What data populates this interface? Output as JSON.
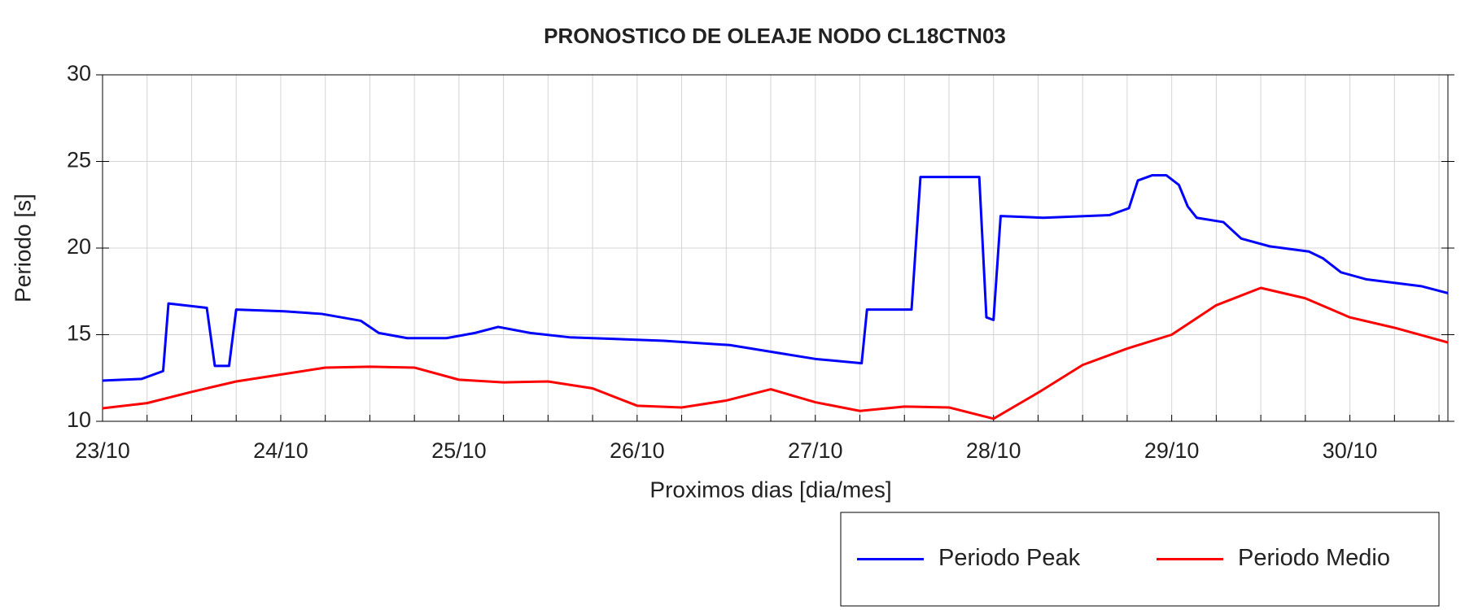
{
  "chart_data": {
    "type": "line",
    "title": "PRONOSTICO DE OLEAJE NODO CL18CTN03",
    "x_label": "Proximos dias [dia/mes]",
    "y_label": "Periodo [s]",
    "xlim": [
      0,
      7.55
    ],
    "xticks": [
      {
        "value": 0,
        "label": "23/10"
      },
      {
        "value": 1,
        "label": "24/10"
      },
      {
        "value": 2,
        "label": "25/10"
      },
      {
        "value": 3,
        "label": "26/10"
      },
      {
        "value": 4,
        "label": "27/10"
      },
      {
        "value": 5,
        "label": "28/10"
      },
      {
        "value": 6,
        "label": "29/10"
      },
      {
        "value": 7,
        "label": "30/10"
      }
    ],
    "minor_xticks": [
      0.25,
      0.5,
      0.75,
      1.25,
      1.5,
      1.75,
      2.25,
      2.5,
      2.75,
      3.25,
      3.5,
      3.75,
      4.25,
      4.5,
      4.75,
      5.25,
      5.5,
      5.75,
      6.25,
      6.5,
      6.75,
      7.25,
      7.5
    ],
    "ylim": [
      10,
      30
    ],
    "yticks": [
      10,
      15,
      20,
      25,
      30
    ],
    "grid": true,
    "legend": "bottom-right",
    "series": [
      {
        "name": "Periodo Peak",
        "color": "#0000ff",
        "x": [
          0,
          0.22,
          0.34,
          0.37,
          0.585,
          0.63,
          0.71,
          0.75,
          1.02,
          1.23,
          1.45,
          1.55,
          1.71,
          1.93,
          2.09,
          2.22,
          2.4,
          2.62,
          3.15,
          3.52,
          3.79,
          4.0,
          4.26,
          4.29,
          4.54,
          4.59,
          4.92,
          4.96,
          5.0,
          5.04,
          5.28,
          5.65,
          5.76,
          5.81,
          5.89,
          5.97,
          6.04,
          6.09,
          6.14,
          6.29,
          6.39,
          6.55,
          6.77,
          6.85,
          6.95,
          7.09,
          7.4,
          7.55
        ],
        "values": [
          12.35,
          12.45,
          12.9,
          16.8,
          16.55,
          13.2,
          13.2,
          16.45,
          16.35,
          16.2,
          15.8,
          15.1,
          14.8,
          14.8,
          15.1,
          15.45,
          15.1,
          14.85,
          14.65,
          14.4,
          13.95,
          13.6,
          13.35,
          16.45,
          16.45,
          24.1,
          24.1,
          16.0,
          15.85,
          21.85,
          21.75,
          21.9,
          22.3,
          23.9,
          24.2,
          24.2,
          23.65,
          22.4,
          21.75,
          21.5,
          20.55,
          20.1,
          19.8,
          19.4,
          18.6,
          18.2,
          17.8,
          17.4
        ]
      },
      {
        "name": "Periodo Medio",
        "color": "#ff0000",
        "x": [
          0,
          0.25,
          0.5,
          0.75,
          1.0,
          1.25,
          1.5,
          1.75,
          2.0,
          2.25,
          2.5,
          2.75,
          3.0,
          3.25,
          3.5,
          3.75,
          4.0,
          4.25,
          4.5,
          4.75,
          5.0,
          5.25,
          5.5,
          5.75,
          6.0,
          6.25,
          6.5,
          6.75,
          7.0,
          7.25,
          7.55
        ],
        "values": [
          10.75,
          11.05,
          11.7,
          12.3,
          12.7,
          13.1,
          13.15,
          13.1,
          12.4,
          12.25,
          12.3,
          11.9,
          10.9,
          10.8,
          11.2,
          11.85,
          11.1,
          10.6,
          10.85,
          10.8,
          10.15,
          11.65,
          13.25,
          14.2,
          15.0,
          16.7,
          17.7,
          17.1,
          16.0,
          15.4,
          14.55
        ]
      }
    ]
  }
}
